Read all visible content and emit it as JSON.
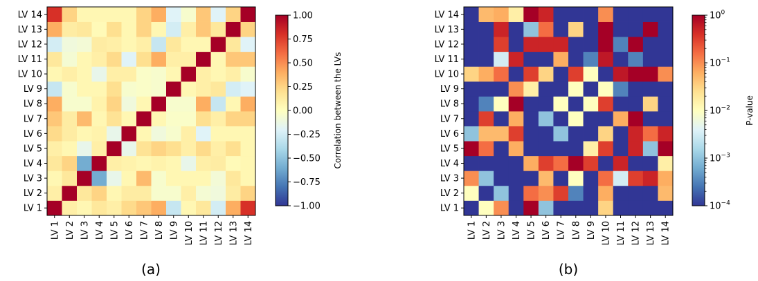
{
  "chart_data": [
    {
      "type": "heatmap",
      "caption": "(a)",
      "labels": [
        "LV 1",
        "LV 2",
        "LV 3",
        "LV 4",
        "LV 5",
        "LV 6",
        "LV 7",
        "LV 8",
        "LV 9",
        "LV 10",
        "LV 11",
        "LV 12",
        "LV 13",
        "LV 14"
      ],
      "colorbar": {
        "label": "Correlation between the LVs",
        "scale": "linear",
        "range": [
          -1.0,
          1.0
        ],
        "ticks": [
          "-1.00",
          "-0.75",
          "-0.50",
          "-0.25",
          "0.00",
          "0.25",
          "0.50",
          "0.75",
          "1.00"
        ],
        "cmap": "RdYlBu_r"
      },
      "values": [
        [
          1.0,
          0.1,
          0.05,
          0.15,
          0.1,
          0.22,
          0.3,
          0.4,
          -0.3,
          0.05,
          0.15,
          -0.25,
          0.4,
          0.8
        ],
        [
          0.1,
          1.0,
          0.15,
          0.25,
          0.05,
          0.12,
          0.12,
          -0.05,
          -0.05,
          0.1,
          -0.07,
          -0.1,
          0.12,
          0.25
        ],
        [
          0.05,
          0.15,
          1.0,
          -0.6,
          -0.15,
          0.05,
          0.35,
          -0.05,
          0.05,
          0.05,
          0.05,
          -0.08,
          0.15,
          0.05
        ],
        [
          0.15,
          0.25,
          -0.6,
          1.0,
          0.1,
          0.08,
          0.05,
          0.08,
          0.05,
          -0.15,
          0.1,
          0.12,
          0.03,
          0.05
        ],
        [
          0.1,
          0.05,
          -0.15,
          0.1,
          1.0,
          -0.15,
          0.18,
          0.25,
          0.2,
          0.1,
          0.22,
          0.1,
          0.2,
          0.05
        ],
        [
          0.22,
          0.12,
          0.05,
          0.08,
          -0.15,
          1.0,
          0.05,
          -0.1,
          -0.05,
          0.1,
          -0.2,
          0.05,
          0.05,
          0.05
        ],
        [
          0.3,
          0.12,
          0.35,
          0.05,
          0.18,
          0.05,
          1.0,
          0.05,
          -0.03,
          -0.03,
          0.2,
          0.1,
          0.25,
          0.25
        ],
        [
          0.4,
          -0.05,
          -0.05,
          0.08,
          0.25,
          -0.1,
          0.05,
          1.0,
          -0.05,
          -0.05,
          0.4,
          -0.3,
          0.05,
          0.4
        ],
        [
          -0.3,
          -0.05,
          0.05,
          0.05,
          0.2,
          -0.05,
          -0.03,
          -0.05,
          1.0,
          0.05,
          0.1,
          0.15,
          -0.25,
          -0.2
        ],
        [
          0.05,
          0.1,
          0.05,
          -0.15,
          0.1,
          0.1,
          -0.03,
          -0.05,
          0.05,
          1.0,
          0.1,
          0.05,
          0.1,
          -0.05
        ],
        [
          0.15,
          -0.07,
          0.05,
          0.1,
          0.22,
          -0.2,
          0.2,
          0.4,
          0.1,
          0.1,
          1.0,
          0.05,
          0.3,
          0.3
        ],
        [
          -0.25,
          -0.1,
          -0.08,
          0.12,
          0.1,
          0.05,
          0.1,
          -0.3,
          0.15,
          0.05,
          0.05,
          1.0,
          0.15,
          -0.2
        ],
        [
          0.4,
          0.12,
          0.15,
          0.03,
          0.2,
          0.05,
          0.25,
          0.05,
          -0.25,
          0.1,
          0.3,
          0.15,
          1.0,
          0.25
        ],
        [
          0.8,
          0.25,
          0.05,
          0.05,
          0.05,
          0.05,
          0.25,
          0.4,
          -0.2,
          -0.05,
          0.3,
          -0.2,
          0.25,
          1.0
        ]
      ]
    },
    {
      "type": "heatmap",
      "caption": "(b)",
      "labels": [
        "LV 1",
        "LV 2",
        "LV 3",
        "LV 4",
        "LV 5",
        "LV 6",
        "LV 7",
        "LV 8",
        "LV 9",
        "LV 10",
        "LV 11",
        "LV 12",
        "LV 13",
        "LV 14"
      ],
      "colorbar": {
        "label": "P-value",
        "scale": "log",
        "range": [
          0.0001,
          1
        ],
        "ticks": [
          {
            "base": "10",
            "exp": "0"
          },
          {
            "base": "10",
            "exp": "−1"
          },
          {
            "base": "10",
            "exp": "−2"
          },
          {
            "base": "10",
            "exp": "−3"
          },
          {
            "base": "10",
            "exp": "−4"
          }
        ],
        "cmap": "RdYlBu_r"
      },
      "log10_values": [
        [
          -4,
          -2,
          -1,
          -4,
          0,
          -3,
          -4,
          -4,
          -4,
          -1.5,
          -4,
          -4,
          -4,
          -4
        ],
        [
          -2,
          -4,
          -3,
          -4,
          -0.8,
          -1,
          -0.5,
          -3.5,
          -4,
          -1.2,
          -4,
          -4,
          -4,
          -1.3
        ],
        [
          -1,
          -3,
          -4,
          -4,
          -4,
          -1.3,
          -4,
          -2,
          -4,
          -0.8,
          -2.5,
          -0.5,
          -0.3,
          -1.2
        ],
        [
          -4,
          -4,
          -4,
          -4,
          -1.2,
          -0.5,
          -0.8,
          0,
          -0.5,
          -4,
          -0.3,
          -4,
          -4,
          -1.8
        ],
        [
          0,
          -0.8,
          -4,
          -1.2,
          -4,
          -4,
          -4,
          -4,
          -1.8,
          -0.5,
          -4,
          -0.3,
          -3,
          0
        ],
        [
          -3,
          -1.3,
          -1.3,
          -0.5,
          -4,
          -4,
          -3,
          -4,
          -4,
          -1.5,
          -4,
          -0.3,
          -0.8,
          -0.3
        ],
        [
          -4,
          -0.5,
          -4,
          -1.2,
          -4,
          -3,
          -4,
          -2,
          -4,
          -4,
          -1.2,
          0,
          -4,
          -4
        ],
        [
          -4,
          -3.5,
          -2,
          0,
          -4,
          -4,
          -2,
          -4,
          -2,
          -0.5,
          -4,
          -4,
          -1.5,
          -4
        ],
        [
          -4,
          -4,
          -4,
          -1,
          -1.8,
          -4,
          -4,
          -2,
          -4,
          -2,
          -3.5,
          -4,
          -4,
          -4
        ],
        [
          -1.5,
          -1.2,
          -0.8,
          -4,
          -0.5,
          -1.5,
          -4,
          -0.5,
          -2,
          -4,
          -0.2,
          0,
          0,
          -1
        ],
        [
          -4,
          -4,
          -2.5,
          -0.3,
          -4,
          -4,
          -1.2,
          -4,
          -3.5,
          -0.2,
          -4,
          -3.5,
          -4,
          -4
        ],
        [
          -4,
          -4,
          -0.5,
          -4,
          -0.3,
          -0.3,
          -0.3,
          -4,
          -4,
          0,
          -3.5,
          0,
          -4,
          -4
        ],
        [
          -4,
          -4,
          -0.3,
          -4,
          -3,
          -0.8,
          -4,
          -1.5,
          -4,
          0,
          -4,
          -4,
          0,
          -4
        ],
        [
          -4,
          -1.3,
          -1.2,
          -1.8,
          0,
          -0.3,
          -4,
          -4,
          -4,
          -1,
          -4,
          -4,
          -4,
          -4
        ]
      ]
    }
  ]
}
